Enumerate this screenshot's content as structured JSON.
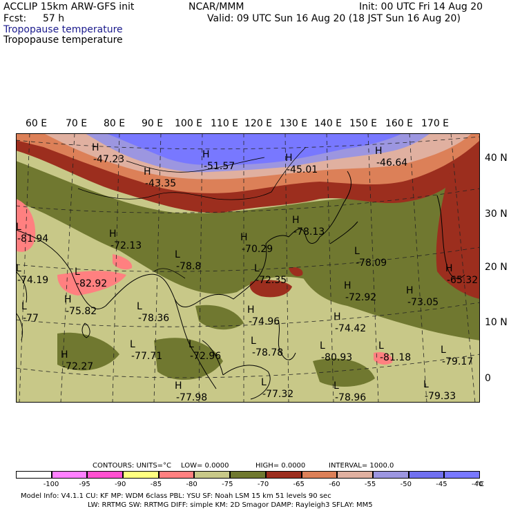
{
  "header": {
    "model_line": "ACCLIP 15km ARW-GFS init",
    "org": "NCAR/MMM",
    "init": "Init: 00 UTC Fri 14 Aug 20",
    "fcst_label": "Fcst:",
    "fcst_value": "57 h",
    "valid": "Valid: 09 UTC Sun 16 Aug 20 (18 JST Sun 16 Aug 20)",
    "field_blue": "Tropopause temperature",
    "field_black": "Tropopause temperature"
  },
  "axes": {
    "longitudes": [
      "60 E",
      "70 E",
      "80 E",
      "90 E",
      "100 E",
      "110 E",
      "120 E",
      "130 E",
      "140 E",
      "150 E",
      "160 E",
      "170 E"
    ],
    "latitudes": [
      "40 N",
      "30 N",
      "20 N",
      "10 N",
      "0"
    ]
  },
  "map_labels": [
    {
      "mark": "H",
      "value": "-47.23"
    },
    {
      "mark": "H",
      "value": "-51.57"
    },
    {
      "mark": "H",
      "value": "-45.01"
    },
    {
      "mark": "H",
      "value": "-46.64"
    },
    {
      "mark": "H",
      "value": "-43.35"
    },
    {
      "mark": "H",
      "value": "-72.13"
    },
    {
      "mark": "L",
      "value": "-82.92"
    },
    {
      "mark": "L",
      "value": "-78.8"
    },
    {
      "mark": "H",
      "value": "-70.29"
    },
    {
      "mark": "L",
      "value": "-78.09"
    },
    {
      "mark": "H",
      "value": "-65.32"
    },
    {
      "mark": "H",
      "value": "-75.82"
    },
    {
      "mark": "L",
      "value": "-72.35"
    },
    {
      "mark": "H",
      "value": "-72.92"
    },
    {
      "mark": "H",
      "value": "-73.05"
    },
    {
      "mark": "L",
      "value": "-78.36"
    },
    {
      "mark": "H",
      "value": "-74.96"
    },
    {
      "mark": "H",
      "value": "-74.42"
    },
    {
      "mark": "H",
      "value": "-72.27"
    },
    {
      "mark": "L",
      "value": "-77.71"
    },
    {
      "mark": "L",
      "value": "-72.96"
    },
    {
      "mark": "L",
      "value": "-78.78"
    },
    {
      "mark": "L",
      "value": "-80.93"
    },
    {
      "mark": "L",
      "value": "-81.18"
    },
    {
      "mark": "L",
      "value": "-79.17"
    },
    {
      "mark": "L",
      "value": "-77.32"
    },
    {
      "mark": "L",
      "value": "-79.33"
    },
    {
      "mark": "L",
      "value": "-74.19"
    },
    {
      "mark": "L",
      "value": "-81.94"
    },
    {
      "mark": "L",
      "value": "-77"
    },
    {
      "mark": "H",
      "value": "-78.13"
    },
    {
      "mark": "H",
      "value": "-77.98"
    },
    {
      "mark": "L",
      "value": "-78.96"
    }
  ],
  "contours": {
    "units_label": "CONTOURS:  UNITS=°C",
    "low": "LOW=  0.0000",
    "high": "HIGH=  0.0000",
    "interval": "INTERVAL=   1000.0"
  },
  "legend": {
    "colors": [
      "#ffffff",
      "#ff80ff",
      "#ff50d0",
      "#ffff80",
      "#ff8080",
      "#c8c888",
      "#707830",
      "#9c2e1e",
      "#dc8058",
      "#e0b0a0",
      "#9c96e0",
      "#7070f0",
      "#7878ff"
    ],
    "ticks": [
      "-100",
      "-95",
      "-90",
      "-85",
      "-80",
      "-75",
      "-70",
      "-65",
      "-60",
      "-55",
      "-50",
      "-45",
      "-40"
    ],
    "unit": "°C"
  },
  "model_info": {
    "line1": "Model Info: V4.1.1     CU: KF       MP: WDM 6class   PBL: YSU       SF: Noah LSM      15 km    51 levels   90 sec",
    "line2": "LW: RRTMG    SW: RRTMG   DIFF: simple KM: 2D Smagor DAMP: Rayleigh3  SFLAY: MM5"
  }
}
